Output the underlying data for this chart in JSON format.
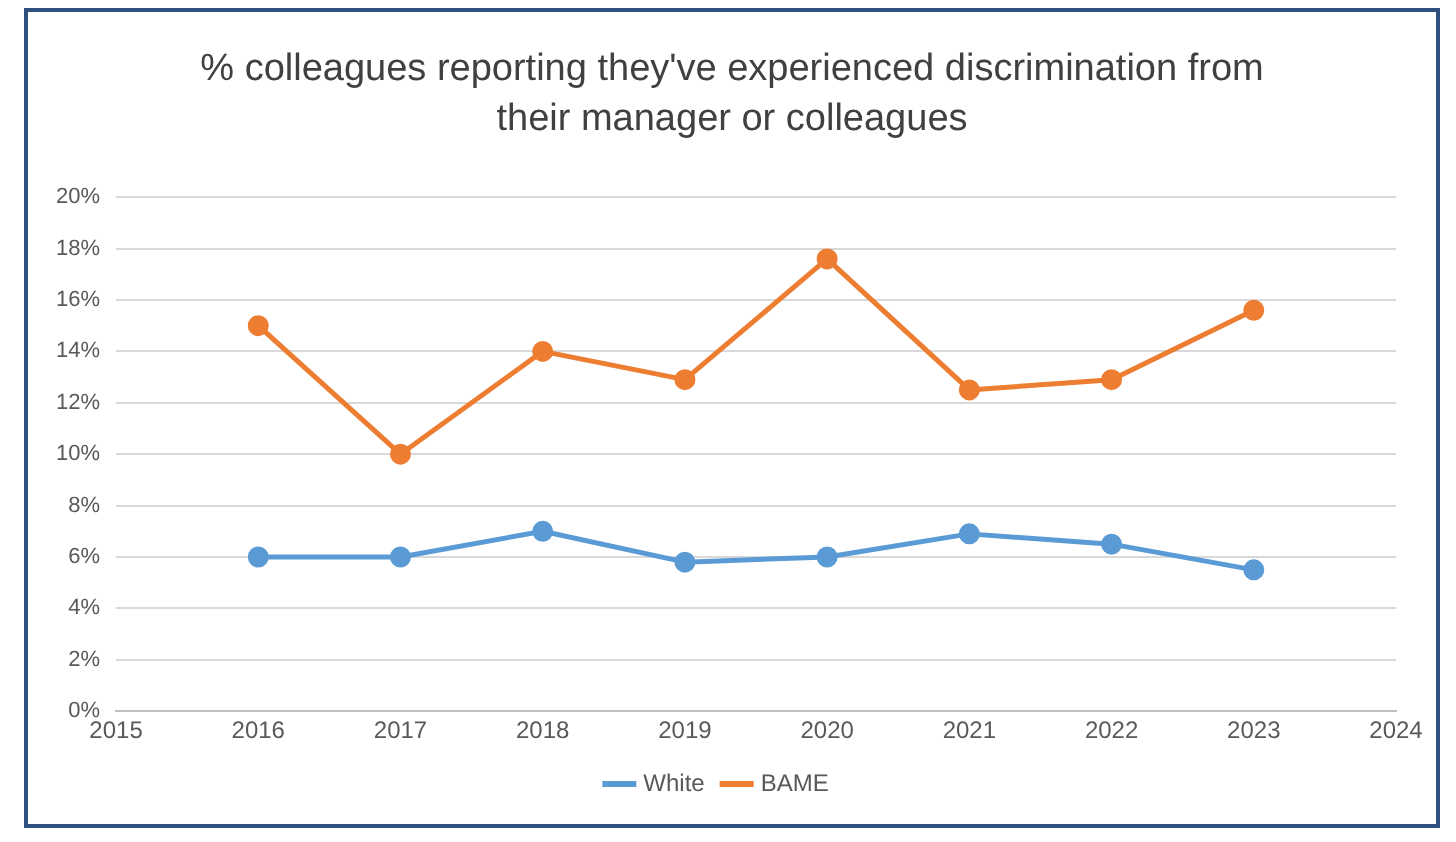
{
  "chart_data": {
    "type": "line",
    "title": "% colleagues reporting they've experienced discrimination from their manager or colleagues",
    "x": [
      2016,
      2017,
      2018,
      2019,
      2020,
      2021,
      2022,
      2023
    ],
    "series": [
      {
        "name": "White",
        "color": "#5b9bd5",
        "values": [
          6,
          6,
          7,
          5.8,
          6,
          6.9,
          6.5,
          5.5
        ]
      },
      {
        "name": "BAME",
        "color": "#ed7d31",
        "values": [
          15,
          10,
          14,
          12.9,
          17.6,
          12.5,
          12.9,
          15.6
        ]
      }
    ],
    "xlim": [
      2015,
      2024
    ],
    "xticks": [
      2015,
      2016,
      2017,
      2018,
      2019,
      2020,
      2021,
      2022,
      2023,
      2024
    ],
    "ylim": [
      0,
      20
    ],
    "yticks": [
      {
        "value": 0,
        "label": "0%"
      },
      {
        "value": 2,
        "label": "2%"
      },
      {
        "value": 4,
        "label": "4%"
      },
      {
        "value": 6,
        "label": "6%"
      },
      {
        "value": 8,
        "label": "8%"
      },
      {
        "value": 10,
        "label": "10%"
      },
      {
        "value": 12,
        "label": "12%"
      },
      {
        "value": 14,
        "label": "14%"
      },
      {
        "value": 16,
        "label": "16%"
      },
      {
        "value": 18,
        "label": "18%"
      },
      {
        "value": 20,
        "label": "20%"
      }
    ],
    "grid": "y",
    "legend": "bottom",
    "marker": "circle",
    "line_style": "solid"
  }
}
